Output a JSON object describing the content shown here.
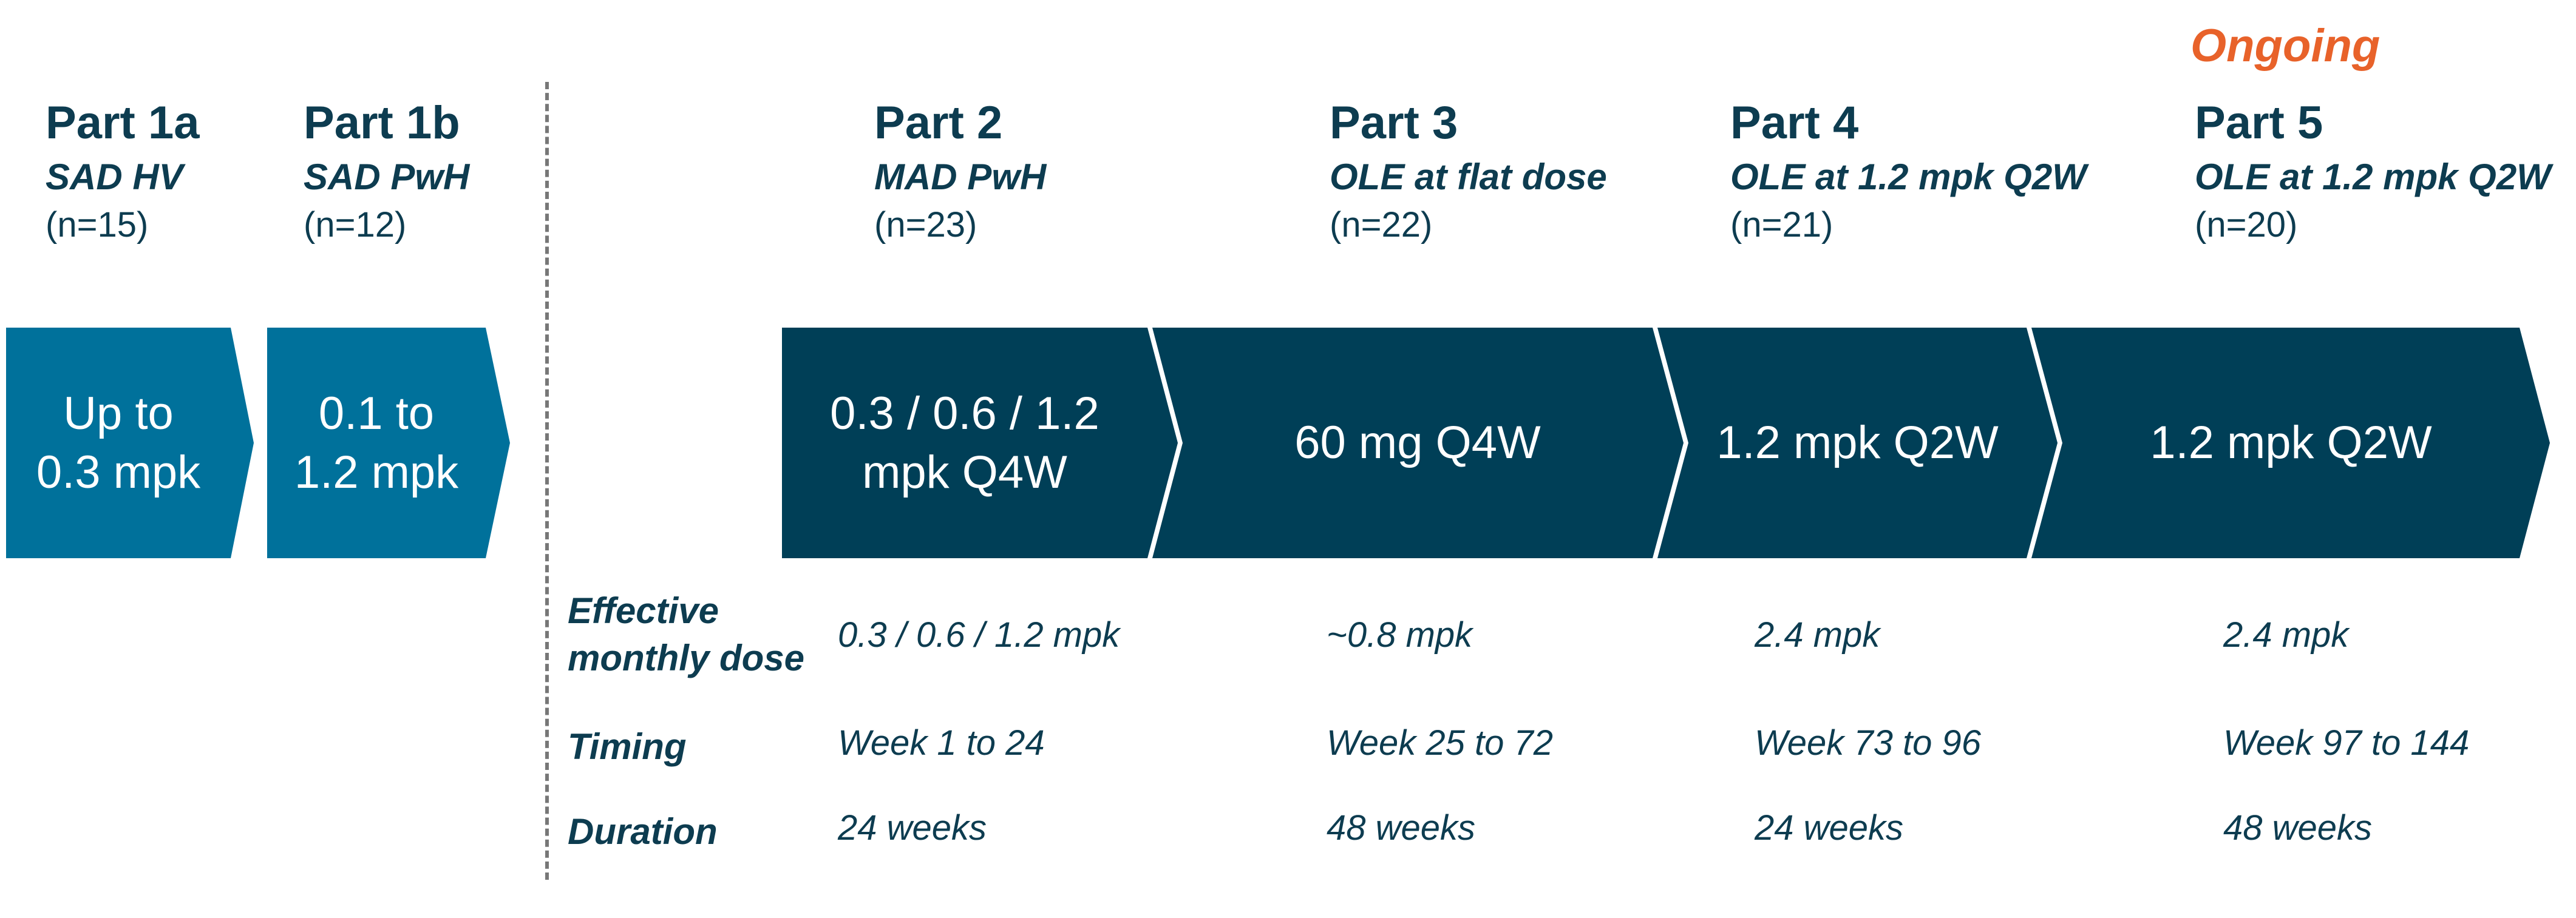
{
  "ongoing_label": "Ongoing",
  "parts": [
    {
      "title": "Part 1a",
      "subtitle": "SAD HV",
      "n": "(n=15)",
      "dose_lines": [
        "Up to",
        "0.3 mpk"
      ]
    },
    {
      "title": "Part 1b",
      "subtitle": "SAD PwH",
      "n": "(n=12)",
      "dose_lines": [
        "0.1 to",
        "1.2 mpk"
      ]
    },
    {
      "title": "Part 2",
      "subtitle": "MAD PwH",
      "n": "(n=23)",
      "dose_lines": [
        "0.3 / 0.6 / 1.2",
        "mpk Q4W"
      ]
    },
    {
      "title": "Part 3",
      "subtitle": "OLE at flat dose",
      "n": "(n=22)",
      "dose_lines": [
        "60 mg Q4W"
      ]
    },
    {
      "title": "Part 4",
      "subtitle": "OLE at 1.2 mpk Q2W",
      "n": "(n=21)",
      "dose_lines": [
        "1.2 mpk Q2W"
      ]
    },
    {
      "title": "Part 5",
      "subtitle": "OLE at 1.2 mpk Q2W",
      "n": "(n=20)",
      "dose_lines": [
        "1.2 mpk Q2W"
      ]
    }
  ],
  "rows": {
    "effective": {
      "label_lines": [
        "Effective",
        "monthly dose"
      ],
      "values": [
        "0.3 / 0.6 / 1.2 mpk",
        "~0.8 mpk",
        "2.4 mpk",
        "2.4 mpk"
      ]
    },
    "timing": {
      "label": "Timing",
      "values": [
        "Week 1 to 24",
        "Week 25 to 72",
        "Week 73 to 96",
        "Week 97 to 144"
      ]
    },
    "duration": {
      "label": "Duration",
      "values": [
        "24 weeks",
        "48 weeks",
        "24 weeks",
        "48 weeks"
      ]
    }
  },
  "colors": {
    "sad_arrow": "#00719b",
    "mad_arrow": "#003f57",
    "text_dark": "#0d3c50",
    "ongoing": "#e8622a",
    "divider": "#777777"
  }
}
